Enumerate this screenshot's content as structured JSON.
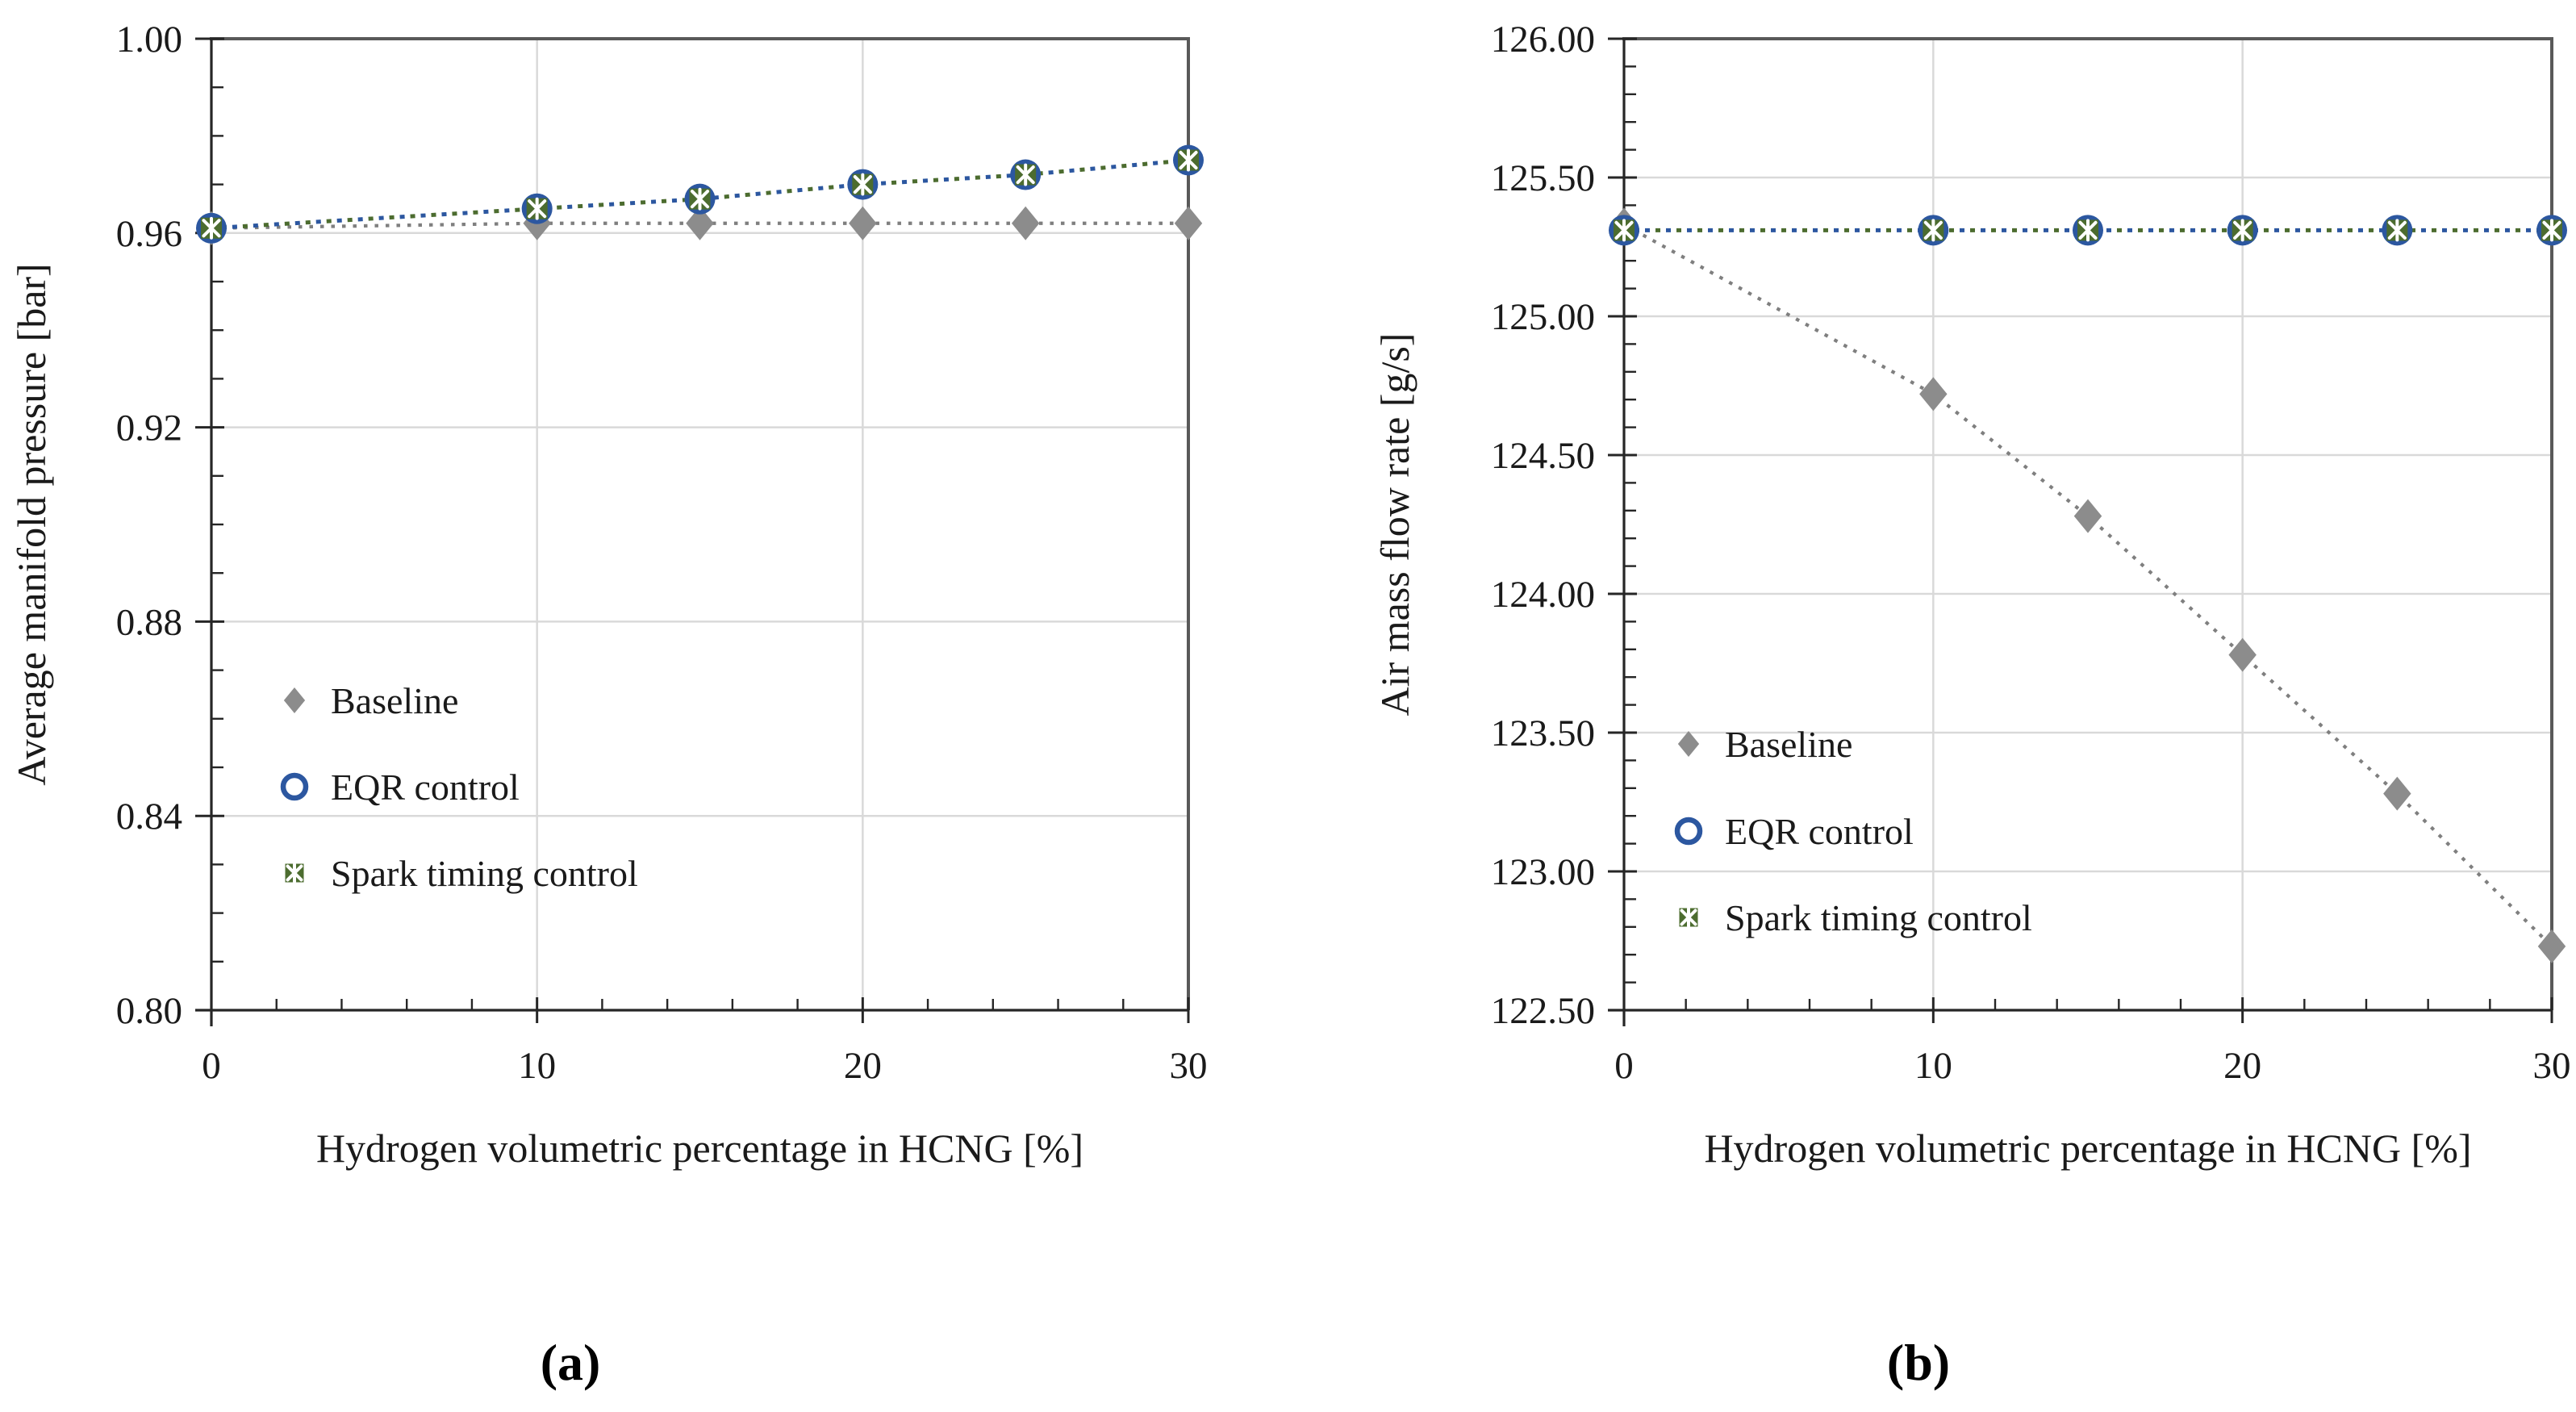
{
  "figure": {
    "description": "Two line charts comparing Baseline, EQR control and Spark timing control versus hydrogen volumetric percentage in HCNG"
  },
  "chart_data": [
    {
      "id": "a",
      "type": "line",
      "caption": "(a)",
      "xlabel": "Hydrogen volumetric percentage in HCNG [%]",
      "ylabel": "Average manifold pressure [bar]",
      "x": [
        0,
        10,
        15,
        20,
        25,
        30
      ],
      "xlim": [
        0,
        30
      ],
      "xticks": [
        0,
        10,
        20,
        30
      ],
      "xtick_labels": [
        "0",
        "10",
        "20",
        "30"
      ],
      "x_minor_step": 2,
      "ylim": [
        0.8,
        1.0
      ],
      "yticks": [
        1.0,
        0.96,
        0.92,
        0.88,
        0.84,
        0.8
      ],
      "ytick_labels": [
        "1.00",
        "0.96",
        "0.92",
        "0.88",
        "0.84",
        "0.80"
      ],
      "y_minor_step": 0.01,
      "grid": true,
      "legend_position": "inside-left",
      "series": [
        {
          "name": "Baseline",
          "marker": "diamond",
          "color": "#8C8C8C",
          "line_color": "#7F7F7F",
          "values": [
            0.961,
            0.962,
            0.962,
            0.962,
            0.962,
            0.962
          ]
        },
        {
          "name": "EQR control",
          "marker": "circle-open",
          "color": "#2C57A0",
          "line_color": "#2C57A0",
          "values": [
            0.961,
            0.965,
            0.967,
            0.97,
            0.972,
            0.975
          ]
        },
        {
          "name": "Spark timing control",
          "marker": "square-x",
          "color": "#4C6C2F",
          "line_color": "#4C6C2F",
          "values": [
            0.961,
            0.965,
            0.967,
            0.97,
            0.972,
            0.975
          ]
        }
      ]
    },
    {
      "id": "b",
      "type": "line",
      "caption": "(b)",
      "xlabel": "Hydrogen volumetric percentage in HCNG [%]",
      "ylabel": "Air mass flow rate [g/s]",
      "x": [
        0,
        10,
        15,
        20,
        25,
        30
      ],
      "xlim": [
        0,
        30
      ],
      "xticks": [
        0,
        10,
        20,
        30
      ],
      "xtick_labels": [
        "0",
        "10",
        "20",
        "30"
      ],
      "x_minor_step": 2,
      "ylim": [
        122.5,
        126.0
      ],
      "yticks": [
        126.0,
        125.5,
        125.0,
        124.5,
        124.0,
        123.5,
        123.0,
        122.5
      ],
      "ytick_labels": [
        "126.00",
        "125.50",
        "125.00",
        "124.50",
        "124.00",
        "123.50",
        "123.00",
        "122.50"
      ],
      "y_minor_step": 0.1,
      "grid": true,
      "legend_position": "inside-left",
      "series": [
        {
          "name": "Baseline",
          "marker": "diamond",
          "color": "#8C8C8C",
          "line_color": "#7F7F7F",
          "values": [
            125.33,
            124.72,
            124.28,
            123.78,
            123.28,
            122.73
          ]
        },
        {
          "name": "EQR control",
          "marker": "circle-open",
          "color": "#2C57A0",
          "line_color": "#2C57A0",
          "values": [
            125.31,
            125.31,
            125.31,
            125.31,
            125.31,
            125.31
          ]
        },
        {
          "name": "Spark timing control",
          "marker": "square-x",
          "color": "#4C6C2F",
          "line_color": "#4C6C2F",
          "values": [
            125.31,
            125.31,
            125.31,
            125.31,
            125.31,
            125.31
          ]
        }
      ]
    }
  ],
  "style_colors": {
    "grid": "#D9D9D9",
    "border": "#595959",
    "axis": "#262626",
    "text": "#1A1A1A"
  }
}
